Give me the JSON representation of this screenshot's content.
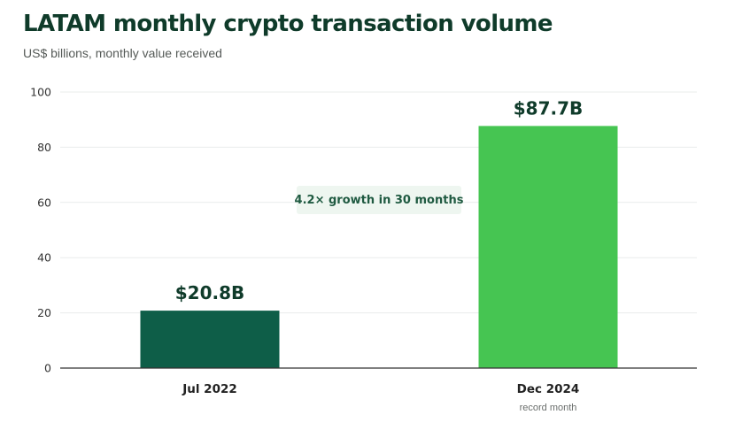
{
  "header": {
    "title": "LATAM monthly crypto transaction volume",
    "subtitle": "US$ billions, monthly value received"
  },
  "annotation": {
    "text": "4.2× growth in 30 months"
  },
  "colors": {
    "dark_bar": "#0e5e48",
    "bright_bar": "#46c552",
    "title": "#0f3b2a",
    "annotation_bg": "#eef6f0",
    "annotation_text": "#1f5a41",
    "grid": "#e9eceb",
    "axis": "#333333"
  },
  "chart_data": {
    "type": "bar",
    "title": "LATAM monthly crypto transaction volume",
    "subtitle": "US$ billions, monthly value received",
    "categories": [
      "Jul 2022",
      "Dec 2024"
    ],
    "category_notes": [
      "",
      "record month"
    ],
    "values": [
      20.8,
      87.7
    ],
    "data_labels": [
      "$20.8B",
      "$87.7B"
    ],
    "bar_colors": [
      "#0e5e48",
      "#46c552"
    ],
    "ylim": [
      0,
      100
    ],
    "yticks": [
      0,
      20,
      40,
      60,
      80,
      100
    ],
    "xlabel": "",
    "ylabel": "",
    "grid": true,
    "annotations": [
      "4.2× growth in 30 months"
    ]
  }
}
